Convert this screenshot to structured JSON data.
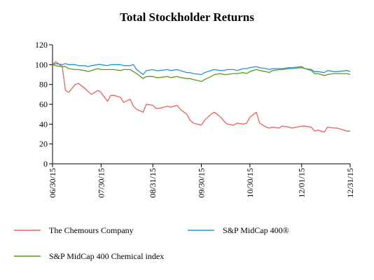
{
  "chart_data": {
    "type": "line",
    "title": "Total Stockholder Returns",
    "xlabel": "",
    "ylabel": "",
    "ylim": [
      0,
      120
    ],
    "yticks": [
      "0",
      "20",
      "40",
      "60",
      "80",
      "100",
      "120"
    ],
    "xticks": [
      "06/30/15",
      "07/30/15",
      "08/31/15",
      "09/30/15",
      "10/30/15",
      "12/01/15",
      "12/31/15"
    ],
    "grid": false,
    "legend_position": "bottom",
    "x": [
      "06/30/15",
      "07/02/15",
      "07/06/15",
      "07/08/15",
      "07/10/15",
      "07/14/15",
      "07/16/15",
      "07/20/15",
      "07/22/15",
      "07/24/15",
      "07/28/15",
      "07/30/15",
      "08/03/15",
      "08/05/15",
      "08/07/15",
      "08/11/15",
      "08/13/15",
      "08/17/15",
      "08/19/15",
      "08/21/15",
      "08/25/15",
      "08/27/15",
      "08/31/15",
      "09/02/15",
      "09/04/15",
      "09/09/15",
      "09/11/15",
      "09/15/15",
      "09/17/15",
      "09/21/15",
      "09/23/15",
      "09/25/15",
      "09/30/15",
      "10/02/15",
      "10/06/15",
      "10/08/15",
      "10/12/15",
      "10/14/15",
      "10/16/15",
      "10/20/15",
      "10/22/15",
      "10/26/15",
      "10/28/15",
      "10/30/15",
      "11/03/15",
      "11/05/15",
      "11/09/15",
      "11/11/15",
      "11/13/15",
      "11/17/15",
      "11/19/15",
      "11/23/15",
      "11/25/15",
      "12/01/15",
      "12/03/15",
      "12/07/15",
      "12/09/15",
      "12/11/15",
      "12/15/15",
      "12/17/15",
      "12/21/15",
      "12/23/15",
      "12/29/15",
      "12/31/15"
    ],
    "series": [
      {
        "name": "The Chemours Company",
        "color": "#e8635a",
        "values": [
          100,
          103,
          98,
          74,
          72,
          80,
          81,
          76,
          73,
          70,
          74,
          72,
          63,
          69,
          69,
          67,
          62,
          65,
          58,
          55,
          52,
          60,
          59,
          56,
          56,
          58,
          57,
          59,
          55,
          50,
          44,
          41,
          39,
          44,
          50,
          52,
          47,
          43,
          40,
          39,
          41,
          40,
          41,
          47,
          52,
          41,
          37,
          36,
          37,
          36,
          38,
          37,
          36,
          38,
          38,
          37,
          33,
          34,
          32,
          37,
          36,
          36,
          33,
          33
        ]
      },
      {
        "name": "S&P MidCap 400®",
        "color": "#2596d8",
        "values": [
          100,
          101,
          100,
          101,
          100,
          100,
          99,
          99,
          98,
          99,
          100,
          100,
          99,
          100,
          100,
          100,
          99,
          99,
          100,
          95,
          90,
          94,
          95,
          94,
          94,
          95,
          94,
          95,
          94,
          92,
          92,
          91,
          90,
          92,
          94,
          95,
          94,
          94,
          95,
          95,
          94,
          96,
          96,
          97,
          98,
          97,
          96,
          95,
          96,
          96,
          96,
          97,
          97,
          98,
          96,
          95,
          93,
          93,
          92,
          94,
          93,
          93,
          94,
          93
        ]
      },
      {
        "name": "S&P MidCap 400 Chemical index",
        "color": "#5b9c18",
        "values": [
          100,
          99,
          98,
          98,
          96,
          95,
          95,
          94,
          93,
          94,
          96,
          95,
          95,
          95,
          95,
          94,
          95,
          95,
          93,
          91,
          86,
          88,
          88,
          87,
          87,
          88,
          87,
          88,
          87,
          86,
          86,
          85,
          83,
          85,
          88,
          90,
          91,
          90,
          90,
          91,
          91,
          92,
          91,
          93,
          95,
          94,
          93,
          92,
          94,
          95,
          95,
          96,
          96,
          97,
          96,
          94,
          91,
          91,
          89,
          90,
          91,
          91,
          91,
          90
        ]
      }
    ]
  }
}
